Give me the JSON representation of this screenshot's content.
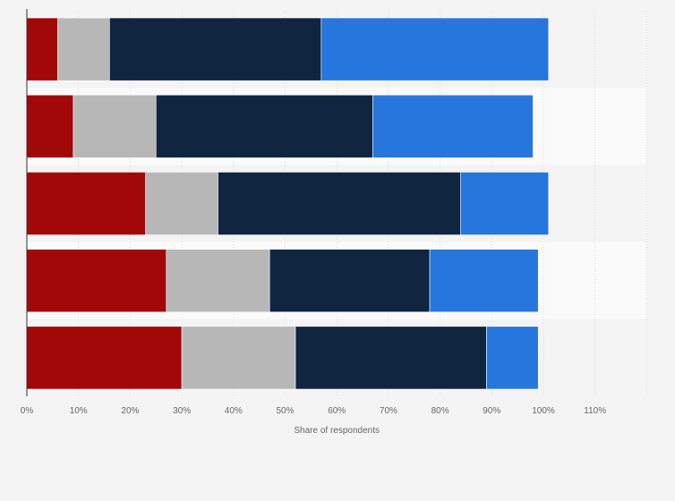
{
  "chart_data": {
    "type": "bar",
    "orientation": "horizontal",
    "stacked": true,
    "title": "",
    "xlabel": "Share of respondents",
    "ylabel": "",
    "xlim": [
      0,
      120
    ],
    "xticks": [
      0,
      10,
      20,
      30,
      40,
      50,
      60,
      70,
      80,
      90,
      100,
      110
    ],
    "tick_suffix": "%",
    "grid": true,
    "categories": [
      "",
      "",
      "",
      "",
      ""
    ],
    "series": [
      {
        "color": "#a20808",
        "values": [
          6,
          9,
          23,
          27,
          30
        ]
      },
      {
        "color": "#b7b7b7",
        "values": [
          10,
          16,
          14,
          20,
          22
        ]
      },
      {
        "color": "#0f2540",
        "values": [
          41,
          42,
          47,
          31,
          37
        ]
      },
      {
        "color": "#2676dd",
        "values": [
          44,
          31,
          17,
          21,
          10
        ]
      }
    ]
  }
}
